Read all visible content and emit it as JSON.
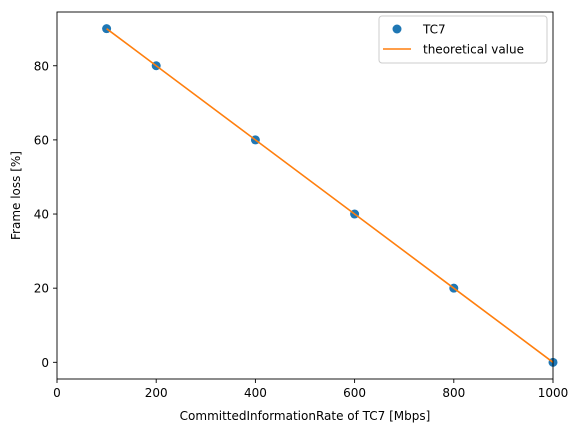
{
  "chart_data": {
    "type": "scatter",
    "xlabel": "CommittedInformationRate of TC7 [Mbps]",
    "ylabel": "Frame loss [%]",
    "xlim": [
      0,
      1000
    ],
    "ylim": [
      -4.5,
      94.5
    ],
    "xticks": [
      0,
      200,
      400,
      600,
      800,
      1000
    ],
    "yticks": [
      0,
      20,
      40,
      60,
      80
    ],
    "grid": false,
    "legend_position": "top-right",
    "series": [
      {
        "name": "TC7",
        "kind": "scatter",
        "color": "#1f77b4",
        "x": [
          100,
          200,
          400,
          600,
          800,
          1000
        ],
        "y": [
          90,
          80,
          60,
          40,
          20,
          0
        ]
      },
      {
        "name": "theoretical value",
        "kind": "line",
        "color": "#ff7f0e",
        "x": [
          100,
          200,
          400,
          600,
          800,
          1000
        ],
        "y": [
          90,
          80,
          60,
          40,
          20,
          0
        ]
      }
    ]
  }
}
